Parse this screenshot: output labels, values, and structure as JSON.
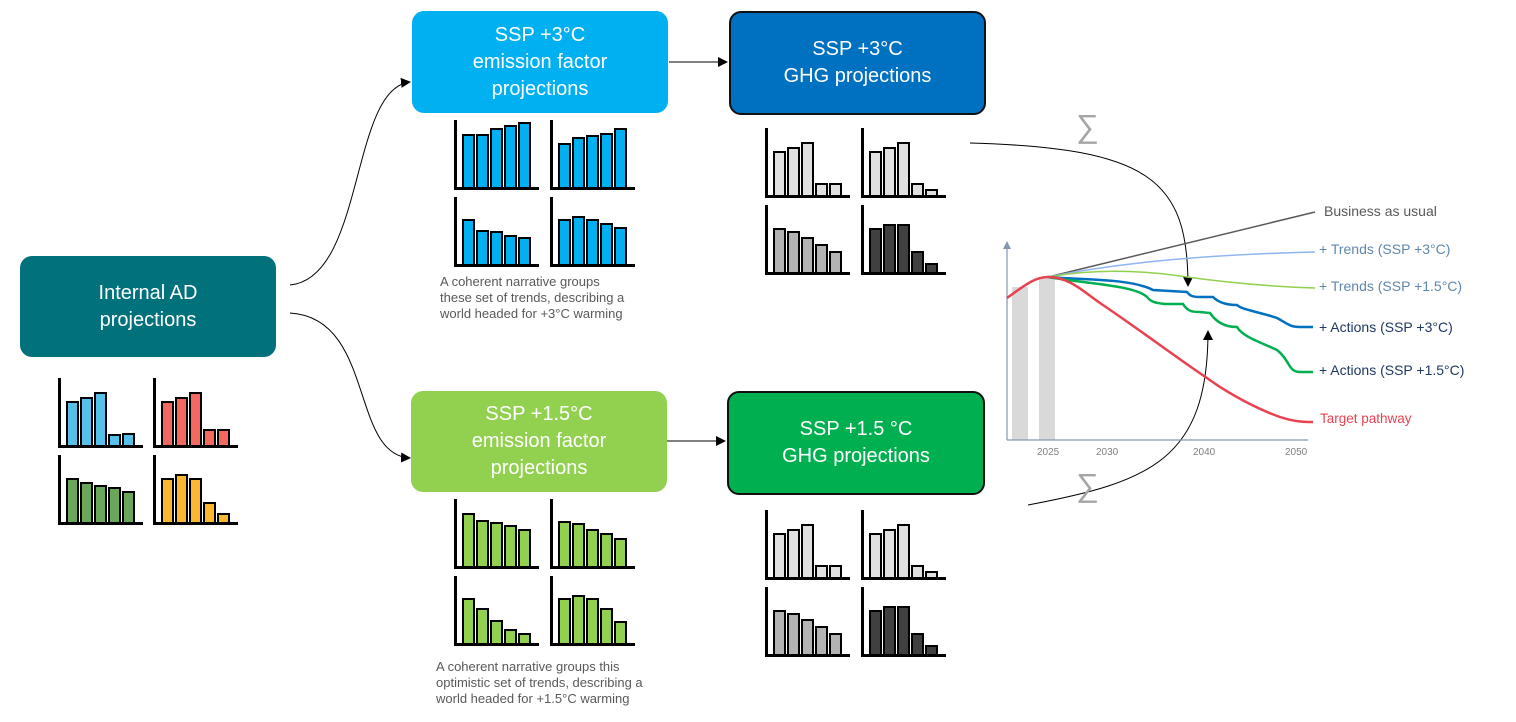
{
  "boxes": {
    "internal_ad": {
      "line1": "Internal AD",
      "line2": "projections",
      "color": "#01717b"
    },
    "ssp3_ef": {
      "line1": "SSP +3°C",
      "line2": "emission factor",
      "line3": "projections",
      "color": "#00b0f0"
    },
    "ssp3_ghg": {
      "line1": "SSP +3°C",
      "line2": "GHG projections",
      "color": "#0070c0"
    },
    "ssp15_ef": {
      "line1": "SSP +1.5°C",
      "line2": "emission factor",
      "line3": "projections",
      "color": "#92d050"
    },
    "ssp15_ghg": {
      "line1": "SSP +1.5 °C",
      "line2": "GHG projections",
      "color": "#00b050"
    }
  },
  "captions": {
    "ssp3": [
      "A coherent narrative groups",
      "these set of trends, describing a",
      "world headed for +3°C warming"
    ],
    "ssp15": [
      "A coherent narrative groups this",
      "optimistic set of trends, describing a",
      "world headed for +1.5°C warming"
    ]
  },
  "sum_symbol": "∑",
  "mini_charts": {
    "internal_ad": [
      {
        "color": "#57c0e8",
        "values": [
          65,
          71,
          78,
          16,
          17
        ]
      },
      {
        "color": "#f4695f",
        "values": [
          65,
          71,
          78,
          23,
          23
        ]
      },
      {
        "color": "#6aa75a",
        "values": [
          65,
          59,
          55,
          51,
          45
        ]
      },
      {
        "color": "#fbb731",
        "values": [
          65,
          71,
          65,
          30,
          13
        ]
      }
    ],
    "ssp3_ef": [
      {
        "color": "#00b0f0",
        "values": [
          78,
          78,
          87,
          91,
          96
        ]
      },
      {
        "color": "#00b0f0",
        "values": [
          65,
          74,
          76,
          79,
          87
        ]
      },
      {
        "color": "#00b0f0",
        "values": [
          66,
          50,
          48,
          43,
          40
        ]
      },
      {
        "color": "#00b0f0",
        "values": [
          66,
          71,
          66,
          61,
          55
        ]
      }
    ],
    "ssp3_ghg": [
      {
        "color": "#e0e0e0",
        "values": [
          65,
          71,
          78,
          17,
          17
        ]
      },
      {
        "color": "#e0e0e0",
        "values": [
          65,
          71,
          78,
          17,
          9
        ]
      },
      {
        "color": "#b3b3b3",
        "values": [
          65,
          60,
          52,
          41,
          31
        ]
      },
      {
        "color": "#404040",
        "values": [
          65,
          70,
          70,
          31,
          13
        ]
      }
    ],
    "ssp15_ef": [
      {
        "color": "#92d050",
        "values": [
          78,
          68,
          64,
          60,
          54
        ]
      },
      {
        "color": "#92d050",
        "values": [
          66,
          63,
          54,
          49,
          41
        ]
      },
      {
        "color": "#92d050",
        "values": [
          66,
          51,
          34,
          20,
          15
        ]
      },
      {
        "color": "#92d050",
        "values": [
          66,
          71,
          66,
          51,
          33
        ]
      }
    ],
    "ssp15_ghg": [
      {
        "color": "#e0e0e0",
        "values": [
          65,
          71,
          78,
          17,
          17
        ]
      },
      {
        "color": "#e0e0e0",
        "values": [
          65,
          71,
          78,
          17,
          9
        ]
      },
      {
        "color": "#b3b3b3",
        "values": [
          65,
          60,
          52,
          41,
          31
        ]
      },
      {
        "color": "#404040",
        "values": [
          65,
          70,
          70,
          31,
          13
        ]
      }
    ]
  },
  "pathway_chart": {
    "x_ticks": [
      "2025",
      "2030",
      "2040",
      "2050"
    ],
    "series": [
      {
        "name": "Business as usual",
        "color": "#595959"
      },
      {
        "name": "+ Trends (SSP +3°C)",
        "color": "#8fb4f0"
      },
      {
        "name": "+ Trends (SSP +1.5°C)",
        "color": "#92d050"
      },
      {
        "name": "+ Actions (SSP +3°C)",
        "color": "#0070c0"
      },
      {
        "name": "+ Actions (SSP +1.5°C)",
        "color": "#00b050"
      },
      {
        "name": "Target pathway",
        "color": "#e8414f"
      }
    ],
    "label_colors": {
      "bau": "#595959",
      "trends": "#5f87ad",
      "actions": "#1f3864",
      "target": "#e8414f"
    }
  }
}
